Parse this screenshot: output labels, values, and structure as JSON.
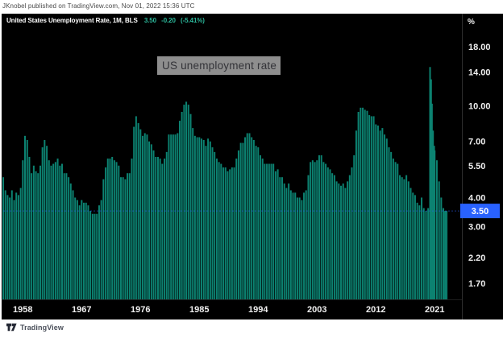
{
  "header": {
    "published_line": "JKnobel published on TradingView.com, Nov 01, 2022 15:36 UTC"
  },
  "legend": {
    "title": "United States Unemployment Rate, 1M, BLS",
    "value": "3.50",
    "change": "-0.20",
    "change_pct": "(-5.41%)"
  },
  "annotation": {
    "text": "US unemployment rate"
  },
  "price_scale": {
    "unit": "%",
    "tick_labels": [
      "18.00",
      "14.00",
      "10.00",
      "7.00",
      "5.50",
      "4.00",
      "3.00",
      "2.20",
      "1.70"
    ],
    "last_price_label": "3.50"
  },
  "time_scale": {
    "tick_labels": [
      "1958",
      "1967",
      "1976",
      "1985",
      "1994",
      "2003",
      "2012",
      "2021"
    ]
  },
  "footer": {
    "brand": "TradingView"
  },
  "colors": {
    "page_bg": "#ffffff",
    "chart_bg": "#000000",
    "bar": "#0c8271",
    "axis_text": "#efefef",
    "axis_line": "#2e2e2e",
    "accent_blue": "#2962ff",
    "badge_text": "#ffffff",
    "legend_value": "#2cb99c",
    "annotation_bg": "#8e8e8e",
    "annotation_text": "#333338"
  },
  "chart_data": {
    "type": "bar",
    "title": "US unemployment rate",
    "series_name": "United States Unemployment Rate, 1M, BLS",
    "ylabel": "%",
    "y_scale": "log",
    "y_ticks": [
      18,
      14,
      10,
      7,
      5.5,
      4,
      3,
      2.2,
      1.7
    ],
    "x_ticks": [
      1958,
      1967,
      1976,
      1985,
      1994,
      2003,
      2012,
      2021
    ],
    "x_range": [
      1955,
      2022.9
    ],
    "last_value": 3.5,
    "legend_off": false,
    "grid": false,
    "points": [
      [
        1955.0,
        4.9
      ],
      [
        1955.33,
        4.3
      ],
      [
        1955.67,
        4.1
      ],
      [
        1956.0,
        4.0
      ],
      [
        1956.33,
        4.3
      ],
      [
        1956.67,
        3.9
      ],
      [
        1957.0,
        4.2
      ],
      [
        1957.33,
        4.1
      ],
      [
        1957.67,
        4.4
      ],
      [
        1958.0,
        5.8
      ],
      [
        1958.33,
        7.4
      ],
      [
        1958.67,
        7.1
      ],
      [
        1959.0,
        6.0
      ],
      [
        1959.33,
        5.1
      ],
      [
        1959.67,
        5.5
      ],
      [
        1960.0,
        5.2
      ],
      [
        1960.33,
        5.1
      ],
      [
        1960.67,
        5.5
      ],
      [
        1961.0,
        6.6
      ],
      [
        1961.33,
        7.1
      ],
      [
        1961.67,
        6.7
      ],
      [
        1962.0,
        5.8
      ],
      [
        1962.33,
        5.5
      ],
      [
        1962.67,
        5.6
      ],
      [
        1963.0,
        5.7
      ],
      [
        1963.33,
        5.9
      ],
      [
        1963.67,
        5.5
      ],
      [
        1964.0,
        5.6
      ],
      [
        1964.33,
        5.1
      ],
      [
        1964.67,
        5.1
      ],
      [
        1965.0,
        4.9
      ],
      [
        1965.33,
        4.6
      ],
      [
        1965.67,
        4.3
      ],
      [
        1966.0,
        4.0
      ],
      [
        1966.33,
        3.9
      ],
      [
        1966.67,
        3.7
      ],
      [
        1967.0,
        3.9
      ],
      [
        1967.33,
        3.8
      ],
      [
        1967.67,
        3.8
      ],
      [
        1968.0,
        3.7
      ],
      [
        1968.33,
        3.5
      ],
      [
        1968.67,
        3.4
      ],
      [
        1969.0,
        3.4
      ],
      [
        1969.33,
        3.4
      ],
      [
        1969.67,
        3.7
      ],
      [
        1970.0,
        3.9
      ],
      [
        1970.33,
        4.8
      ],
      [
        1970.67,
        5.4
      ],
      [
        1971.0,
        5.9
      ],
      [
        1971.33,
        5.9
      ],
      [
        1971.67,
        6.0
      ],
      [
        1972.0,
        5.8
      ],
      [
        1972.33,
        5.7
      ],
      [
        1972.67,
        5.5
      ],
      [
        1973.0,
        4.9
      ],
      [
        1973.33,
        4.9
      ],
      [
        1973.67,
        4.8
      ],
      [
        1974.0,
        5.1
      ],
      [
        1974.33,
        5.1
      ],
      [
        1974.67,
        5.9
      ],
      [
        1975.0,
        8.1
      ],
      [
        1975.33,
        9.0
      ],
      [
        1975.67,
        8.4
      ],
      [
        1976.0,
        7.9
      ],
      [
        1976.33,
        7.4
      ],
      [
        1976.67,
        7.6
      ],
      [
        1977.0,
        7.5
      ],
      [
        1977.33,
        7.0
      ],
      [
        1977.67,
        6.8
      ],
      [
        1978.0,
        6.4
      ],
      [
        1978.33,
        6.0
      ],
      [
        1978.67,
        6.0
      ],
      [
        1979.0,
        5.9
      ],
      [
        1979.33,
        5.6
      ],
      [
        1979.67,
        5.9
      ],
      [
        1980.0,
        6.3
      ],
      [
        1980.33,
        7.5
      ],
      [
        1980.67,
        7.5
      ],
      [
        1981.0,
        7.5
      ],
      [
        1981.33,
        7.5
      ],
      [
        1981.67,
        7.6
      ],
      [
        1982.0,
        8.6
      ],
      [
        1982.33,
        9.4
      ],
      [
        1982.67,
        10.1
      ],
      [
        1983.0,
        10.4
      ],
      [
        1983.33,
        10.1
      ],
      [
        1983.67,
        9.2
      ],
      [
        1984.0,
        8.0
      ],
      [
        1984.33,
        7.4
      ],
      [
        1984.67,
        7.3
      ],
      [
        1985.0,
        7.3
      ],
      [
        1985.33,
        7.2
      ],
      [
        1985.67,
        7.1
      ],
      [
        1986.0,
        6.7
      ],
      [
        1986.33,
        7.2
      ],
      [
        1986.67,
        7.0
      ],
      [
        1987.0,
        6.6
      ],
      [
        1987.33,
        6.3
      ],
      [
        1987.67,
        5.9
      ],
      [
        1988.0,
        5.7
      ],
      [
        1988.33,
        5.6
      ],
      [
        1988.67,
        5.4
      ],
      [
        1989.0,
        5.4
      ],
      [
        1989.33,
        5.2
      ],
      [
        1989.67,
        5.3
      ],
      [
        1990.0,
        5.4
      ],
      [
        1990.33,
        5.4
      ],
      [
        1990.67,
        5.9
      ],
      [
        1991.0,
        6.4
      ],
      [
        1991.33,
        6.9
      ],
      [
        1991.67,
        6.9
      ],
      [
        1992.0,
        7.3
      ],
      [
        1992.33,
        7.6
      ],
      [
        1992.67,
        7.6
      ],
      [
        1993.0,
        7.3
      ],
      [
        1993.33,
        7.1
      ],
      [
        1993.67,
        6.7
      ],
      [
        1994.0,
        6.6
      ],
      [
        1994.33,
        6.1
      ],
      [
        1994.67,
        5.9
      ],
      [
        1995.0,
        5.6
      ],
      [
        1995.33,
        5.6
      ],
      [
        1995.67,
        5.6
      ],
      [
        1996.0,
        5.6
      ],
      [
        1996.33,
        5.6
      ],
      [
        1996.67,
        5.2
      ],
      [
        1997.0,
        5.3
      ],
      [
        1997.33,
        4.9
      ],
      [
        1997.67,
        4.9
      ],
      [
        1998.0,
        4.6
      ],
      [
        1998.33,
        4.4
      ],
      [
        1998.67,
        4.6
      ],
      [
        1999.0,
        4.3
      ],
      [
        1999.33,
        4.2
      ],
      [
        1999.67,
        4.2
      ],
      [
        2000.0,
        4.0
      ],
      [
        2000.33,
        4.0
      ],
      [
        2000.67,
        3.9
      ],
      [
        2001.0,
        4.2
      ],
      [
        2001.33,
        4.3
      ],
      [
        2001.67,
        5.0
      ],
      [
        2002.0,
        5.7
      ],
      [
        2002.33,
        5.8
      ],
      [
        2002.67,
        5.7
      ],
      [
        2003.0,
        5.8
      ],
      [
        2003.33,
        6.1
      ],
      [
        2003.67,
        6.1
      ],
      [
        2004.0,
        5.7
      ],
      [
        2004.33,
        5.6
      ],
      [
        2004.67,
        5.4
      ],
      [
        2005.0,
        5.3
      ],
      [
        2005.33,
        5.1
      ],
      [
        2005.67,
        5.0
      ],
      [
        2006.0,
        4.7
      ],
      [
        2006.33,
        4.6
      ],
      [
        2006.67,
        4.5
      ],
      [
        2007.0,
        4.6
      ],
      [
        2007.33,
        4.4
      ],
      [
        2007.67,
        4.7
      ],
      [
        2008.0,
        5.0
      ],
      [
        2008.33,
        5.4
      ],
      [
        2008.67,
        6.1
      ],
      [
        2009.0,
        7.8
      ],
      [
        2009.33,
        9.4
      ],
      [
        2009.67,
        9.8
      ],
      [
        2010.0,
        9.8
      ],
      [
        2010.33,
        9.6
      ],
      [
        2010.67,
        9.5
      ],
      [
        2011.0,
        9.1
      ],
      [
        2011.33,
        9.0
      ],
      [
        2011.67,
        9.0
      ],
      [
        2012.0,
        8.3
      ],
      [
        2012.33,
        8.2
      ],
      [
        2012.67,
        7.8
      ],
      [
        2013.0,
        8.0
      ],
      [
        2013.33,
        7.5
      ],
      [
        2013.67,
        7.2
      ],
      [
        2014.0,
        6.6
      ],
      [
        2014.33,
        6.3
      ],
      [
        2014.67,
        5.9
      ],
      [
        2015.0,
        5.7
      ],
      [
        2015.33,
        5.6
      ],
      [
        2015.67,
        5.0
      ],
      [
        2016.0,
        4.9
      ],
      [
        2016.33,
        4.8
      ],
      [
        2016.67,
        5.0
      ],
      [
        2017.0,
        4.7
      ],
      [
        2017.33,
        4.4
      ],
      [
        2017.67,
        4.2
      ],
      [
        2018.0,
        4.1
      ],
      [
        2018.33,
        3.8
      ],
      [
        2018.67,
        3.7
      ],
      [
        2019.0,
        4.0
      ],
      [
        2019.33,
        3.6
      ],
      [
        2019.67,
        3.5
      ],
      [
        2020.0,
        3.6
      ],
      [
        2020.29,
        14.7
      ],
      [
        2020.45,
        13.0
      ],
      [
        2020.58,
        10.2
      ],
      [
        2020.75,
        7.8
      ],
      [
        2020.92,
        6.7
      ],
      [
        2021.0,
        6.4
      ],
      [
        2021.33,
        5.8
      ],
      [
        2021.67,
        4.7
      ],
      [
        2022.0,
        4.0
      ],
      [
        2022.33,
        3.6
      ],
      [
        2022.58,
        3.5
      ],
      [
        2022.83,
        3.5
      ]
    ]
  }
}
